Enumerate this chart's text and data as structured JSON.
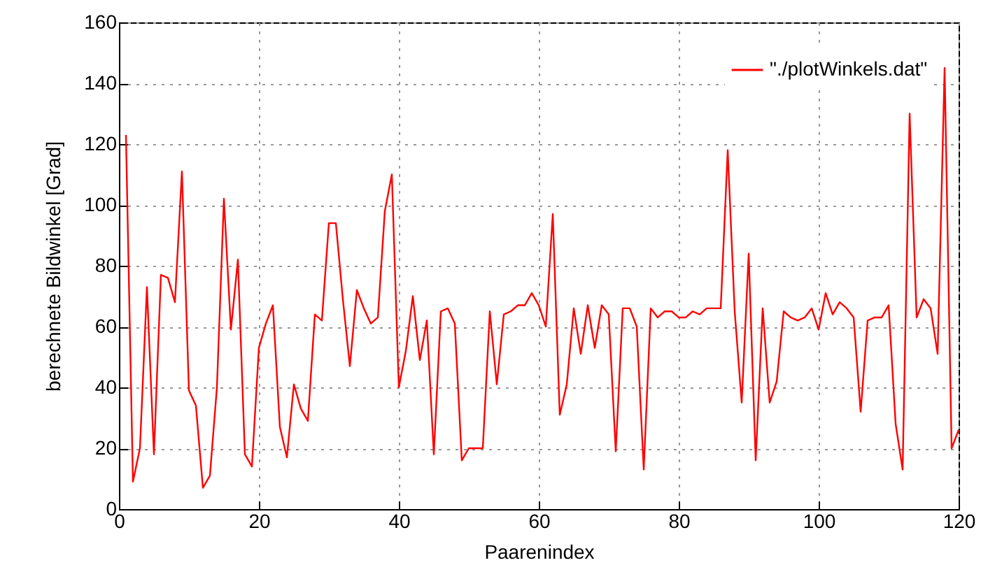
{
  "chart_data": {
    "type": "line",
    "xlabel": "Paarenindex",
    "ylabel": "berechnete Bildwinkel [Grad]",
    "x": [
      1,
      2,
      3,
      4,
      5,
      6,
      7,
      8,
      9,
      10,
      11,
      12,
      13,
      14,
      15,
      16,
      17,
      18,
      19,
      20,
      21,
      22,
      23,
      24,
      25,
      26,
      27,
      28,
      29,
      30,
      31,
      32,
      33,
      34,
      35,
      36,
      37,
      38,
      39,
      40,
      41,
      42,
      43,
      44,
      45,
      46,
      47,
      48,
      49,
      50,
      51,
      52,
      53,
      54,
      55,
      56,
      57,
      58,
      59,
      60,
      61,
      62,
      63,
      64,
      65,
      66,
      67,
      68,
      69,
      70,
      71,
      72,
      73,
      74,
      75,
      76,
      77,
      78,
      79,
      80,
      81,
      82,
      83,
      84,
      85,
      86,
      87,
      88,
      89,
      90,
      91,
      92,
      93,
      94,
      95,
      96,
      97,
      98,
      99,
      100,
      101,
      102,
      103,
      104,
      105,
      106,
      107,
      108,
      109,
      110,
      111,
      112,
      113,
      114,
      115,
      116,
      117,
      118,
      119,
      120
    ],
    "series": [
      {
        "name": "\"./plotWinkels.dat\"",
        "color": "#ff0000",
        "values": [
          123,
          9,
          20,
          73,
          18,
          77,
          76,
          68,
          111,
          39,
          34,
          7,
          11,
          40,
          102,
          59,
          82,
          18,
          14,
          53,
          61,
          67,
          27,
          17,
          41,
          33,
          29,
          64,
          62,
          94,
          94,
          69,
          47,
          72,
          66,
          61,
          63,
          98,
          110,
          40,
          52,
          70,
          49,
          62,
          18,
          65,
          66,
          61,
          16,
          20,
          20,
          20,
          65,
          41,
          64,
          65,
          67,
          67,
          71,
          67,
          60,
          97,
          31,
          41,
          66,
          51,
          67,
          53,
          67,
          64,
          19,
          66,
          66,
          60,
          13,
          66,
          63,
          65,
          65,
          63,
          63,
          65,
          64,
          66,
          66,
          66,
          118,
          65,
          35,
          84,
          16,
          66,
          35,
          42,
          65,
          63,
          62,
          63,
          66,
          59,
          71,
          64,
          68,
          66,
          63,
          32,
          62,
          63,
          63,
          67,
          28,
          13,
          130,
          63,
          69,
          66,
          51,
          145,
          20,
          26
        ]
      }
    ],
    "xlim": [
      0,
      120
    ],
    "xticks": [
      0,
      20,
      40,
      60,
      80,
      100,
      120
    ],
    "ylim": [
      0,
      160
    ],
    "yticks": [
      0,
      20,
      40,
      60,
      80,
      100,
      120,
      140,
      160
    ],
    "grid": true,
    "legend": "top right",
    "line_style": "solid"
  }
}
